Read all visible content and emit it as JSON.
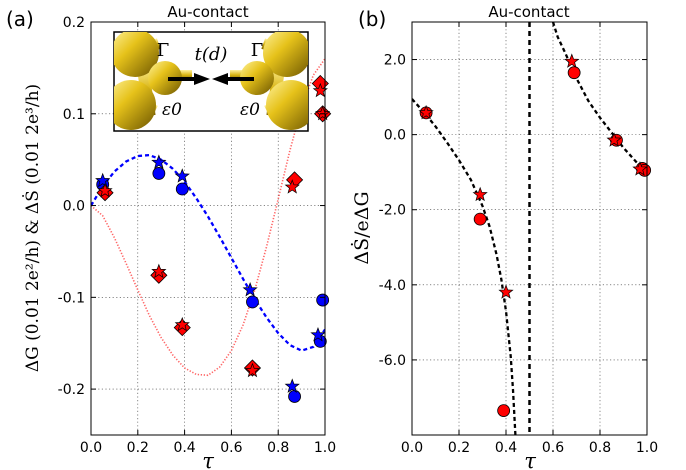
{
  "chart_data": [
    {
      "type": "scatter",
      "panel_label": "(a)",
      "title": "Au-contact",
      "xlabel": "τ",
      "ylabel": "ΔG (0.01 2e²/h) & ΔṠ (0.01 2e³/h)",
      "xlim": [
        0.0,
        1.0
      ],
      "ylim": [
        -0.25,
        0.2
      ],
      "xticks": [
        0.0,
        0.2,
        0.4,
        0.6,
        0.8,
        1.0
      ],
      "xtick_labels": [
        "0.0",
        "0.2",
        "0.4",
        "0.6",
        "0.8",
        "1.0"
      ],
      "yticks": [
        -0.2,
        -0.1,
        0.0,
        0.1,
        0.2
      ],
      "ytick_labels": [
        "-0.2",
        "-0.1",
        "0.0",
        "0.1",
        "0.2"
      ],
      "grid": true,
      "inset_labels": [
        "Γ",
        "t(d)",
        "Γ",
        "ε0",
        "ε0"
      ],
      "series": [
        {
          "marker": "circle",
          "color": "#0000ff",
          "x": [
            0.05,
            0.29,
            0.39,
            0.69,
            0.87,
            0.98,
            0.99
          ],
          "y": [
            0.023,
            0.035,
            0.018,
            -0.105,
            -0.208,
            -0.148,
            -0.103
          ]
        },
        {
          "marker": "star",
          "color": "#0000ff",
          "x": [
            0.05,
            0.29,
            0.39,
            0.68,
            0.86,
            0.97
          ],
          "y": [
            0.027,
            0.047,
            0.032,
            -0.092,
            -0.197,
            -0.141
          ]
        },
        {
          "marker": "diamond",
          "color": "#ff0000",
          "x": [
            0.06,
            0.29,
            0.39,
            0.69,
            0.87,
            0.98,
            0.99
          ],
          "y": [
            0.014,
            -0.076,
            -0.133,
            -0.177,
            0.028,
            0.133,
            0.1
          ]
        },
        {
          "marker": "star",
          "color": "#ff0000",
          "x": [
            0.06,
            0.29,
            0.39,
            0.69,
            0.86,
            0.98,
            0.99
          ],
          "y": [
            0.016,
            -0.072,
            -0.13,
            -0.18,
            0.02,
            0.125,
            0.1
          ]
        },
        {
          "style": "dashed-line",
          "color": "#0000ff",
          "x": [
            0.0,
            0.05,
            0.1,
            0.15,
            0.2,
            0.25,
            0.3,
            0.35,
            0.4,
            0.45,
            0.5,
            0.55,
            0.6,
            0.65,
            0.7,
            0.75,
            0.8,
            0.85,
            0.9,
            0.95,
            1.0
          ],
          "y": [
            0.0,
            0.021,
            0.037,
            0.048,
            0.054,
            0.055,
            0.05,
            0.04,
            0.026,
            0.008,
            -0.012,
            -0.034,
            -0.057,
            -0.08,
            -0.102,
            -0.122,
            -0.139,
            -0.152,
            -0.158,
            -0.154,
            -0.135
          ]
        },
        {
          "style": "dotted-line",
          "color": "#ff6666",
          "x": [
            0.0,
            0.05,
            0.1,
            0.15,
            0.2,
            0.25,
            0.3,
            0.35,
            0.4,
            0.45,
            0.5,
            0.55,
            0.6,
            0.65,
            0.7,
            0.75,
            0.8,
            0.85,
            0.9,
            0.95,
            1.0
          ],
          "y": [
            0.0,
            -0.011,
            -0.035,
            -0.063,
            -0.092,
            -0.12,
            -0.144,
            -0.163,
            -0.177,
            -0.184,
            -0.185,
            -0.176,
            -0.158,
            -0.13,
            -0.092,
            -0.045,
            0.007,
            0.06,
            0.107,
            0.142,
            0.16
          ]
        }
      ]
    },
    {
      "type": "scatter",
      "panel_label": "(b)",
      "title": "Au-contact",
      "xlabel": "τ",
      "ylabel": "ΔṠ/eΔG",
      "xlim": [
        0.0,
        1.0
      ],
      "ylim": [
        -8.0,
        3.0
      ],
      "xticks": [
        0.0,
        0.2,
        0.4,
        0.6,
        0.8,
        1.0
      ],
      "xtick_labels": [
        "0.0",
        "0.2",
        "0.4",
        "0.6",
        "0.8",
        "1.0"
      ],
      "yticks": [
        2.0,
        0.0,
        -2.0,
        -4.0,
        -6.0
      ],
      "ytick_labels": [
        "2.0",
        "0.0",
        "-2.0",
        "-4.0",
        "-6.0"
      ],
      "grid": true,
      "vertical_line_x": 0.5,
      "series": [
        {
          "marker": "circle",
          "color": "#ff0000",
          "x": [
            0.06,
            0.29,
            0.39,
            0.69,
            0.87,
            0.98,
            0.99
          ],
          "y": [
            0.58,
            -2.25,
            -7.35,
            1.65,
            -0.15,
            -0.9,
            -0.95
          ]
        },
        {
          "marker": "star",
          "color": "#ff0000",
          "x": [
            0.06,
            0.29,
            0.4,
            0.68,
            0.86,
            0.97
          ],
          "y": [
            0.58,
            -1.6,
            -4.2,
            1.95,
            -0.15,
            -0.92
          ]
        },
        {
          "style": "dashed-line",
          "color": "#000000",
          "x": [
            0.0,
            0.05,
            0.1,
            0.15,
            0.2,
            0.25,
            0.3,
            0.33,
            0.36,
            0.38,
            0.4,
            0.42,
            0.43,
            0.44
          ],
          "y": [
            0.95,
            0.6,
            0.22,
            -0.22,
            -0.68,
            -1.2,
            -1.9,
            -2.45,
            -3.2,
            -3.85,
            -4.7,
            -5.9,
            -6.8,
            -8.0
          ]
        },
        {
          "style": "dashed-line",
          "color": "#000000",
          "x": [
            0.6,
            0.62,
            0.65,
            0.7,
            0.75,
            0.8,
            0.85,
            0.9,
            0.95,
            1.0
          ],
          "y": [
            3.0,
            2.6,
            2.2,
            1.5,
            0.9,
            0.45,
            0.05,
            -0.35,
            -0.7,
            -1.05
          ]
        }
      ]
    }
  ]
}
